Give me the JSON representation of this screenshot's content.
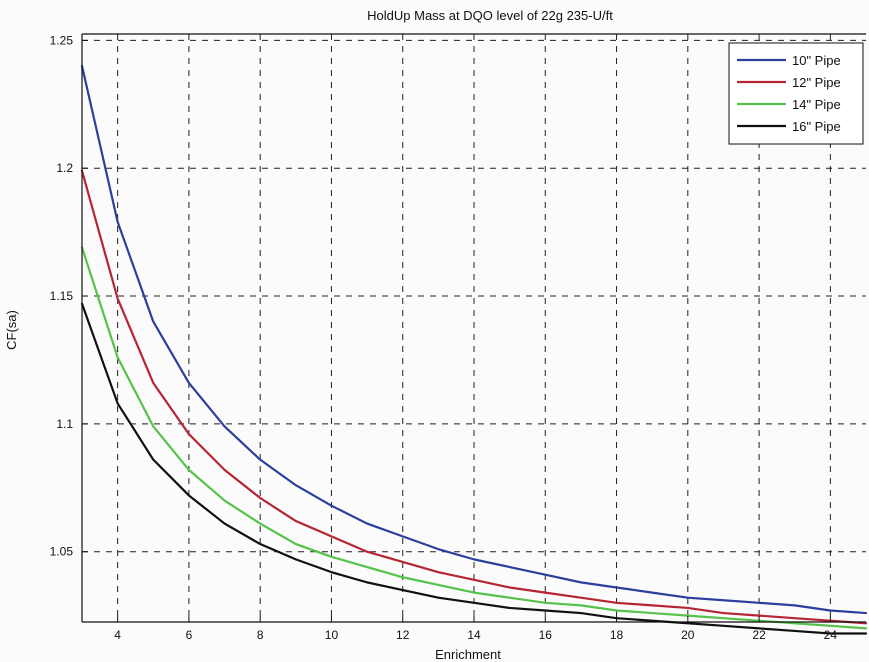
{
  "chart_data": {
    "type": "line",
    "title": "HoldUp Mass at DQO level of 22g 235-U/ft",
    "xlabel": "Enrichment",
    "ylabel": "CF(sa)",
    "xlim": [
      3,
      25
    ],
    "ylim": [
      1.0225,
      1.2525
    ],
    "x_ticks": [
      4,
      6,
      8,
      10,
      12,
      14,
      16,
      18,
      20,
      22,
      24
    ],
    "y_ticks": [
      1.05,
      1.1,
      1.15,
      1.2,
      1.25
    ],
    "y_tick_labels": [
      "1.05",
      "1.1",
      "1.15",
      "1.2",
      "1.25"
    ],
    "grid": true,
    "legend_position": "top-right",
    "x": [
      3,
      4,
      5,
      6,
      7,
      8,
      9,
      10,
      11,
      12,
      13,
      14,
      15,
      16,
      17,
      18,
      19,
      20,
      21,
      22,
      23,
      24,
      25
    ],
    "series": [
      {
        "name": "10\" Pipe",
        "color": "#2b3f9c",
        "values": [
          1.24,
          1.179,
          1.14,
          1.116,
          1.099,
          1.086,
          1.076,
          1.068,
          1.061,
          1.056,
          1.051,
          1.047,
          1.044,
          1.041,
          1.038,
          1.036,
          1.034,
          1.032,
          1.031,
          1.03,
          1.029,
          1.027,
          1.026
        ]
      },
      {
        "name": "12\" Pipe",
        "color": "#b52533",
        "values": [
          1.199,
          1.149,
          1.116,
          1.096,
          1.082,
          1.071,
          1.062,
          1.056,
          1.05,
          1.046,
          1.042,
          1.039,
          1.036,
          1.034,
          1.032,
          1.03,
          1.029,
          1.028,
          1.026,
          1.025,
          1.024,
          1.023,
          1.022
        ]
      },
      {
        "name": "14\" Pipe",
        "color": "#55c24a",
        "values": [
          1.169,
          1.126,
          1.099,
          1.082,
          1.07,
          1.061,
          1.053,
          1.048,
          1.044,
          1.04,
          1.037,
          1.034,
          1.032,
          1.03,
          1.029,
          1.027,
          1.026,
          1.025,
          1.024,
          1.023,
          1.022,
          1.021,
          1.02
        ]
      },
      {
        "name": "16\" Pipe",
        "color": "#111111",
        "values": [
          1.147,
          1.108,
          1.086,
          1.072,
          1.061,
          1.053,
          1.047,
          1.042,
          1.038,
          1.035,
          1.032,
          1.03,
          1.028,
          1.027,
          1.026,
          1.024,
          1.023,
          1.022,
          1.021,
          1.02,
          1.019,
          1.018,
          1.018
        ]
      }
    ]
  }
}
